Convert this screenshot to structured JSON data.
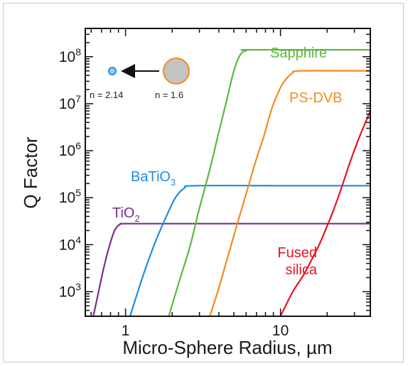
{
  "chart_data": {
    "type": "line",
    "title": "",
    "xlabel": "Micro-Sphere Radius, µm",
    "ylabel": "Q Factor",
    "x_scale": "log",
    "y_scale": "log",
    "xlim": [
      0.55,
      38
    ],
    "ylim": [
      300,
      400000000
    ],
    "x_ticks": [
      {
        "value": 1,
        "label": "1"
      },
      {
        "value": 10,
        "label": "10"
      }
    ],
    "y_ticks": [
      {
        "value": 1000,
        "base": "10",
        "exp": "3"
      },
      {
        "value": 10000,
        "base": "10",
        "exp": "4"
      },
      {
        "value": 100000,
        "base": "10",
        "exp": "5"
      },
      {
        "value": 1000000,
        "base": "10",
        "exp": "6"
      },
      {
        "value": 10000000,
        "base": "10",
        "exp": "7"
      },
      {
        "value": 100000000,
        "base": "10",
        "exp": "8"
      }
    ],
    "grid": false,
    "series": [
      {
        "name": "TiO2",
        "label_main": "TiO",
        "label_sub": "2",
        "color": "#7b2d8e",
        "x": [
          0.62,
          0.67,
          0.72,
          0.78,
          0.85,
          0.92,
          1.0,
          2.0,
          10.0,
          38.0
        ],
        "y": [
          300,
          1000,
          3000,
          8500,
          20000,
          27000,
          28000,
          28000,
          28000,
          28000
        ]
      },
      {
        "name": "BaTiO3",
        "label_main": "BaTiO",
        "label_sub": "3",
        "color": "#1f8be6",
        "x": [
          1.07,
          1.2,
          1.35,
          1.55,
          1.8,
          2.1,
          2.4,
          2.8,
          10.0,
          38.0
        ],
        "y": [
          300,
          1000,
          3200,
          11000,
          35000,
          100000,
          160000,
          180000,
          180000,
          180000
        ]
      },
      {
        "name": "Sapphire",
        "label_main": "Sapphire",
        "label_sub": "",
        "color": "#5cb83a",
        "x": [
          1.9,
          2.2,
          2.6,
          3.0,
          3.5,
          4.0,
          4.5,
          5.0,
          5.5,
          6.0,
          6.5,
          38.0
        ],
        "y": [
          300,
          1500,
          9000,
          60000,
          400000,
          2500000,
          12000000,
          50000000,
          110000000,
          135000000,
          140000000,
          140000000
        ]
      },
      {
        "name": "PS-DVB",
        "label_main": "PS-DVB",
        "label_sub": "",
        "color": "#f28c1e",
        "x": [
          3.5,
          4.0,
          4.6,
          5.3,
          6.0,
          6.8,
          7.8,
          8.8,
          10.0,
          11.0,
          12.0,
          13.5,
          38.0
        ],
        "y": [
          300,
          1200,
          6000,
          30000,
          120000,
          500000,
          2000000,
          8000000,
          22000000,
          35000000,
          45000000,
          50000000,
          50000000
        ]
      },
      {
        "name": "Fused silica",
        "label_main": "Fused",
        "label_line2": "silica",
        "label_sub": "",
        "color": "#e8141e",
        "x": [
          10.0,
          12.0,
          14.0,
          16.0,
          18.0,
          20.0,
          22.0,
          25.0,
          28.0,
          32.0,
          38.0
        ],
        "y": [
          300,
          1000,
          2200,
          5000,
          11000,
          25000,
          55000,
          180000,
          550000,
          1800000,
          7000000
        ]
      }
    ],
    "annotations": {
      "inset_left_label": "n = 2.14",
      "inset_right_label": "n = 1.6"
    }
  }
}
